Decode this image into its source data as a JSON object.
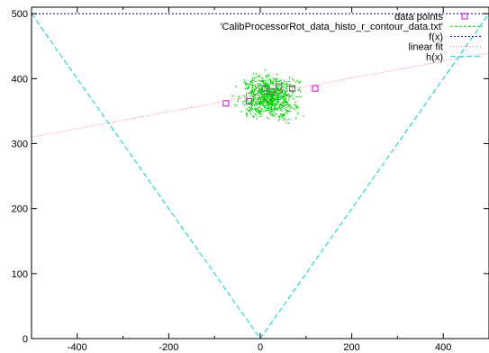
{
  "chart_data": {
    "type": "scatter",
    "title": "",
    "xlabel": "",
    "ylabel": "",
    "xlim": [
      -500,
      500
    ],
    "ylim": [
      0,
      510
    ],
    "grid": false,
    "legend_position": "top-right",
    "x_ticks": [
      -400,
      -200,
      0,
      200,
      400
    ],
    "x_tick_labels": [
      "-400",
      "-200",
      "0",
      "200",
      "400"
    ],
    "y_ticks": [
      0,
      100,
      200,
      300,
      400,
      500
    ],
    "y_tick_labels": [
      "0",
      "100",
      "200",
      "300",
      "400",
      "500"
    ],
    "series": [
      {
        "name": "data points",
        "kind": "points",
        "color": "#cc00cc",
        "marker": "open-square",
        "x": [
          -75,
          -25,
          10,
          25,
          40,
          70,
          120
        ],
        "y": [
          362,
          365,
          385,
          380,
          388,
          385,
          385
        ]
      },
      {
        "name": "'CalibProcessorRot_data_histo_r_contour_data.txt'",
        "kind": "cloud",
        "color": "#00cc00",
        "dash": "3,2",
        "center": [
          20,
          372
        ],
        "spread": [
          55,
          28
        ],
        "count": 650
      },
      {
        "name": "f(x)",
        "kind": "line",
        "color": "#000080",
        "dash": "2,2",
        "x": [
          -500,
          500
        ],
        "y": [
          500,
          500
        ]
      },
      {
        "name": "linear fit",
        "kind": "line",
        "color": "#ff66cc",
        "dash": "1,2",
        "x": [
          -500,
          500
        ],
        "y": [
          310,
          440
        ]
      },
      {
        "name": "h(x)",
        "kind": "line",
        "color": "#00cccc",
        "dash": "6,3",
        "x": [
          -500,
          0,
          500
        ],
        "y": [
          500,
          0,
          500
        ]
      }
    ]
  }
}
